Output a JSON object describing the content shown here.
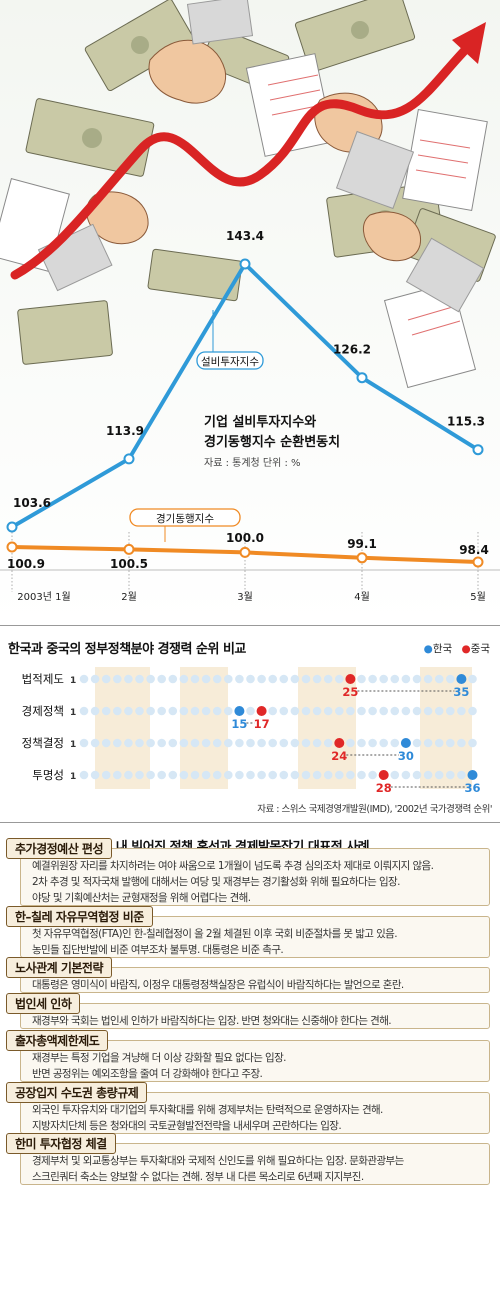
{
  "chart_data": [
    {
      "type": "line",
      "title": "기업 설비투자지수와 경기동행지수 순환변동치",
      "source": "자료 : 통계청 단위 : %",
      "categories": [
        "2003년 1월",
        "2월",
        "3월",
        "4월",
        "5월"
      ],
      "series": [
        {
          "name": "설비투자지수",
          "values": [
            103.6,
            113.9,
            143.4,
            126.2,
            115.3
          ],
          "color": "#2f9ad8"
        },
        {
          "name": "경기동행지수",
          "values": [
            100.9,
            100.5,
            100.0,
            99.1,
            98.4
          ],
          "color": "#f08a24"
        }
      ],
      "labels": {
        "invest": [
          "103.6",
          "113.9",
          "143.4",
          "126.2",
          "115.3"
        ],
        "coinc": [
          "100.9",
          "100.5",
          "100.0",
          "99.1",
          "98.4"
        ]
      }
    },
    {
      "type": "scatter",
      "title": "한국과 중국의 정부정책분야 경쟁력 순위 비교",
      "source": "자료 : 스위스 국제경영개발원(IMD), '2002년 국가경쟁력 순위'",
      "axis_start_label": "1",
      "xlim": [
        1,
        36
      ],
      "legend": [
        {
          "name": "한국",
          "color": "#2f8ad8"
        },
        {
          "name": "중국",
          "color": "#e02828"
        }
      ],
      "rows": [
        {
          "label": "법적제도",
          "korea": 35,
          "china": 25
        },
        {
          "label": "경제정책",
          "korea": 15,
          "china": 17
        },
        {
          "label": "정책결정",
          "korea": 30,
          "china": 24
        },
        {
          "label": "투명성",
          "korea": 36,
          "china": 28
        }
      ]
    }
  ],
  "cases": {
    "title": "최근 정치권 및 정부 내 빚어진 정책 혼선과 경제발목잡기 대표적 사례",
    "items": [
      {
        "tag": "추가경정예산 편성",
        "lines": [
          "예결위원장 자리를 차지하려는 여야 싸움으로  1개월이 넘도록 추경 심의조차 제대로 이뤄지지 않음.",
          "2차 추경 및 적자국채 발행에 대해서는 여당 및 재경부는 경기활성화 위해 필요하다는 입장.",
          "야당 및 기획예산처는 균형재정을 위해 어렵다는 견해."
        ]
      },
      {
        "tag": "한–칠레 자유무역협정 비준",
        "lines": [
          "첫 자유무역협정(FTA)인 한-칠레협정이 올 2월 체결된 이후 국회 비준절차를 못 밟고 있음.",
          "농민들 집단반발에 비준 여부조차 불투명. 대통령은 비준 촉구."
        ]
      },
      {
        "tag": "노사관계 기본전략",
        "lines": [
          "대통령은 영미식이 바람직, 이정우 대통령정책실장은 유럽식이 바람직하다는 발언으로 혼란."
        ]
      },
      {
        "tag": "법인세 인하",
        "lines": [
          "재경부와 국회는 법인세 인하가 바람직하다는 입장. 반면 청와대는 신중해야 한다는 견해."
        ]
      },
      {
        "tag": "출자총액제한제도",
        "lines": [
          "재경부는 특정 기업을 겨냥해 더 이상 강화할 필요 없다는 입장.",
          "반면 공정위는 예외조항을 줄여 더 강화해야 한다고 주장."
        ]
      },
      {
        "tag": "공장입지 수도권 총량규제",
        "lines": [
          "외국인 투자유치와 대기업의 투자확대를 위해 경제부처는 탄력적으로 운영하자는 견해.",
          "지방자치단체 등은 청와대의 국토균형발전전략을 내세우며 곤란하다는 입장."
        ]
      },
      {
        "tag": "한미 투자협정 체결",
        "lines": [
          "경제부처 및 외교통상부는 투자확대와 국제적 신인도를 위해  필요하다는 입장.  문화관광부는",
          "스크린쿼터 축소는 양보할 수 없다는 견해.  정부 내 다른 목소리로 6년째 지지부진."
        ]
      }
    ]
  }
}
